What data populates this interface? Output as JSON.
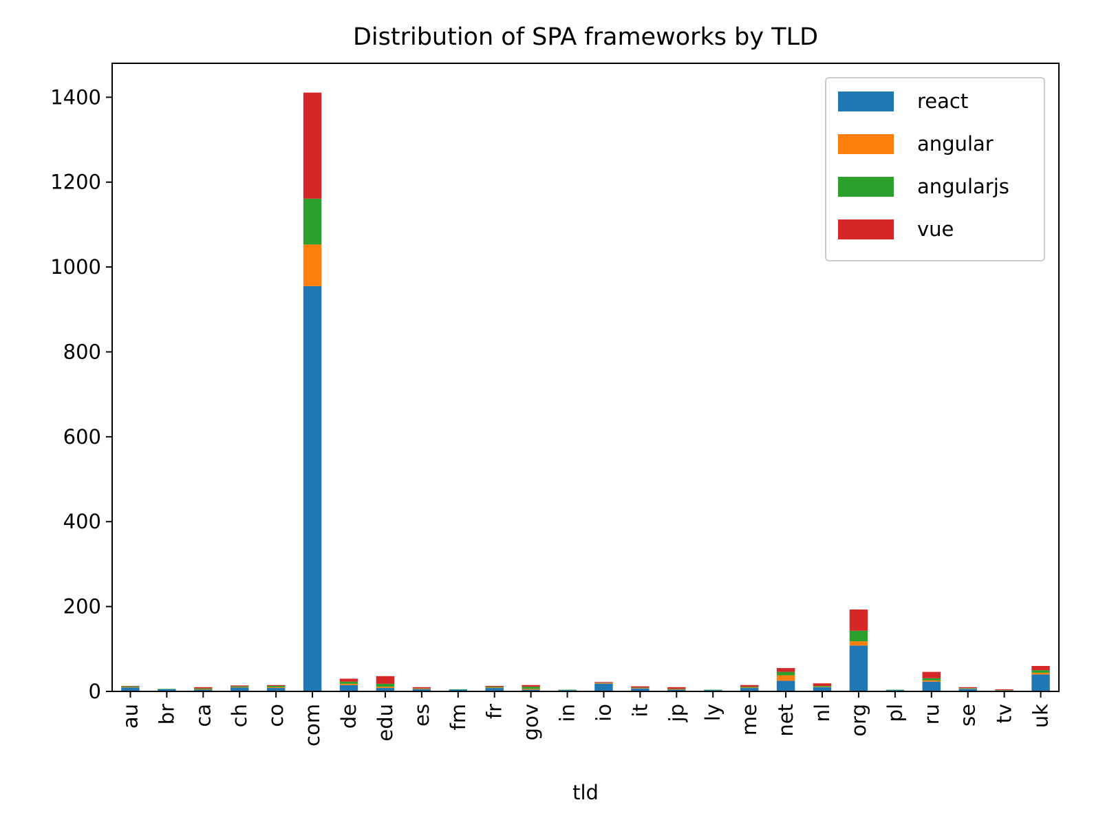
{
  "chart_data": {
    "type": "bar",
    "stacked": true,
    "title": "Distribution of SPA frameworks by TLD",
    "xlabel": "tld",
    "ylabel": "",
    "ylim": [
      0,
      1480
    ],
    "yticks": [
      0,
      200,
      400,
      600,
      800,
      1000,
      1200,
      1400
    ],
    "grid": false,
    "legend_position": "top-right",
    "categories": [
      "au",
      "br",
      "ca",
      "ch",
      "co",
      "com",
      "de",
      "edu",
      "es",
      "fm",
      "fr",
      "gov",
      "in",
      "io",
      "it",
      "jp",
      "ly",
      "me",
      "net",
      "nl",
      "org",
      "pl",
      "ru",
      "se",
      "tv",
      "uk"
    ],
    "series": [
      {
        "name": "react",
        "color": "#1f77b4",
        "values": [
          9,
          5,
          4,
          9,
          8,
          955,
          15,
          8,
          5,
          4,
          8,
          4,
          3,
          18,
          7,
          4,
          3,
          8,
          25,
          10,
          108,
          3,
          23,
          6,
          2,
          40
        ]
      },
      {
        "name": "angular",
        "color": "#ff7f0e",
        "values": [
          1,
          0,
          1,
          1,
          2,
          98,
          3,
          3,
          1,
          0,
          1,
          2,
          0,
          1,
          1,
          1,
          0,
          1,
          13,
          1,
          10,
          0,
          3,
          1,
          0,
          4
        ]
      },
      {
        "name": "angularjs",
        "color": "#2ca02c",
        "values": [
          2,
          1,
          2,
          2,
          3,
          108,
          5,
          7,
          1,
          1,
          2,
          5,
          1,
          1,
          1,
          1,
          1,
          2,
          8,
          2,
          25,
          1,
          5,
          1,
          1,
          6
        ]
      },
      {
        "name": "vue",
        "color": "#d62728",
        "values": [
          1,
          0,
          3,
          2,
          2,
          250,
          7,
          18,
          3,
          0,
          2,
          4,
          0,
          2,
          3,
          4,
          0,
          4,
          9,
          6,
          50,
          0,
          15,
          2,
          2,
          10
        ]
      }
    ]
  }
}
